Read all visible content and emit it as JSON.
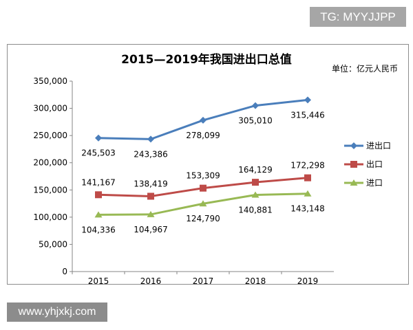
{
  "watermark_top": "TG: MYYJJPP",
  "watermark_bottom": "www.yhjxkj.com",
  "chart_data": {
    "type": "line",
    "title": "2015—2019年我国进出口总值",
    "unit_label": "单位：亿元人民币",
    "categories": [
      "2015",
      "2016",
      "2017",
      "2018",
      "2019"
    ],
    "ylim": [
      0,
      350000
    ],
    "yticks": [
      "0",
      "50,000",
      "100,000",
      "150,000",
      "200,000",
      "250,000",
      "300,000",
      "350,000"
    ],
    "grid": false,
    "legend_position": "right",
    "series": [
      {
        "name": "进出口",
        "color": "#4a7ebb",
        "marker": "diamond",
        "values": [
          245503,
          243386,
          278099,
          305010,
          315446
        ],
        "labels": [
          "245,503",
          "243,386",
          "278,099",
          "305,010",
          "315,446"
        ],
        "label_pos": [
          "below",
          "below",
          "below",
          "below",
          "below"
        ]
      },
      {
        "name": "出口",
        "color": "#be4b48",
        "marker": "square",
        "values": [
          141167,
          138419,
          153309,
          164129,
          172298
        ],
        "labels": [
          "141,167",
          "138,419",
          "153,309",
          "164,129",
          "172,298"
        ],
        "label_pos": [
          "above",
          "above",
          "above",
          "above",
          "above"
        ]
      },
      {
        "name": "进口",
        "color": "#98b954",
        "marker": "triangle",
        "values": [
          104336,
          104967,
          124790,
          140881,
          143148
        ],
        "labels": [
          "104,336",
          "104,967",
          "124,790",
          "140,881",
          "143,148"
        ],
        "label_pos": [
          "below",
          "below",
          "below",
          "below",
          "below"
        ]
      }
    ]
  }
}
